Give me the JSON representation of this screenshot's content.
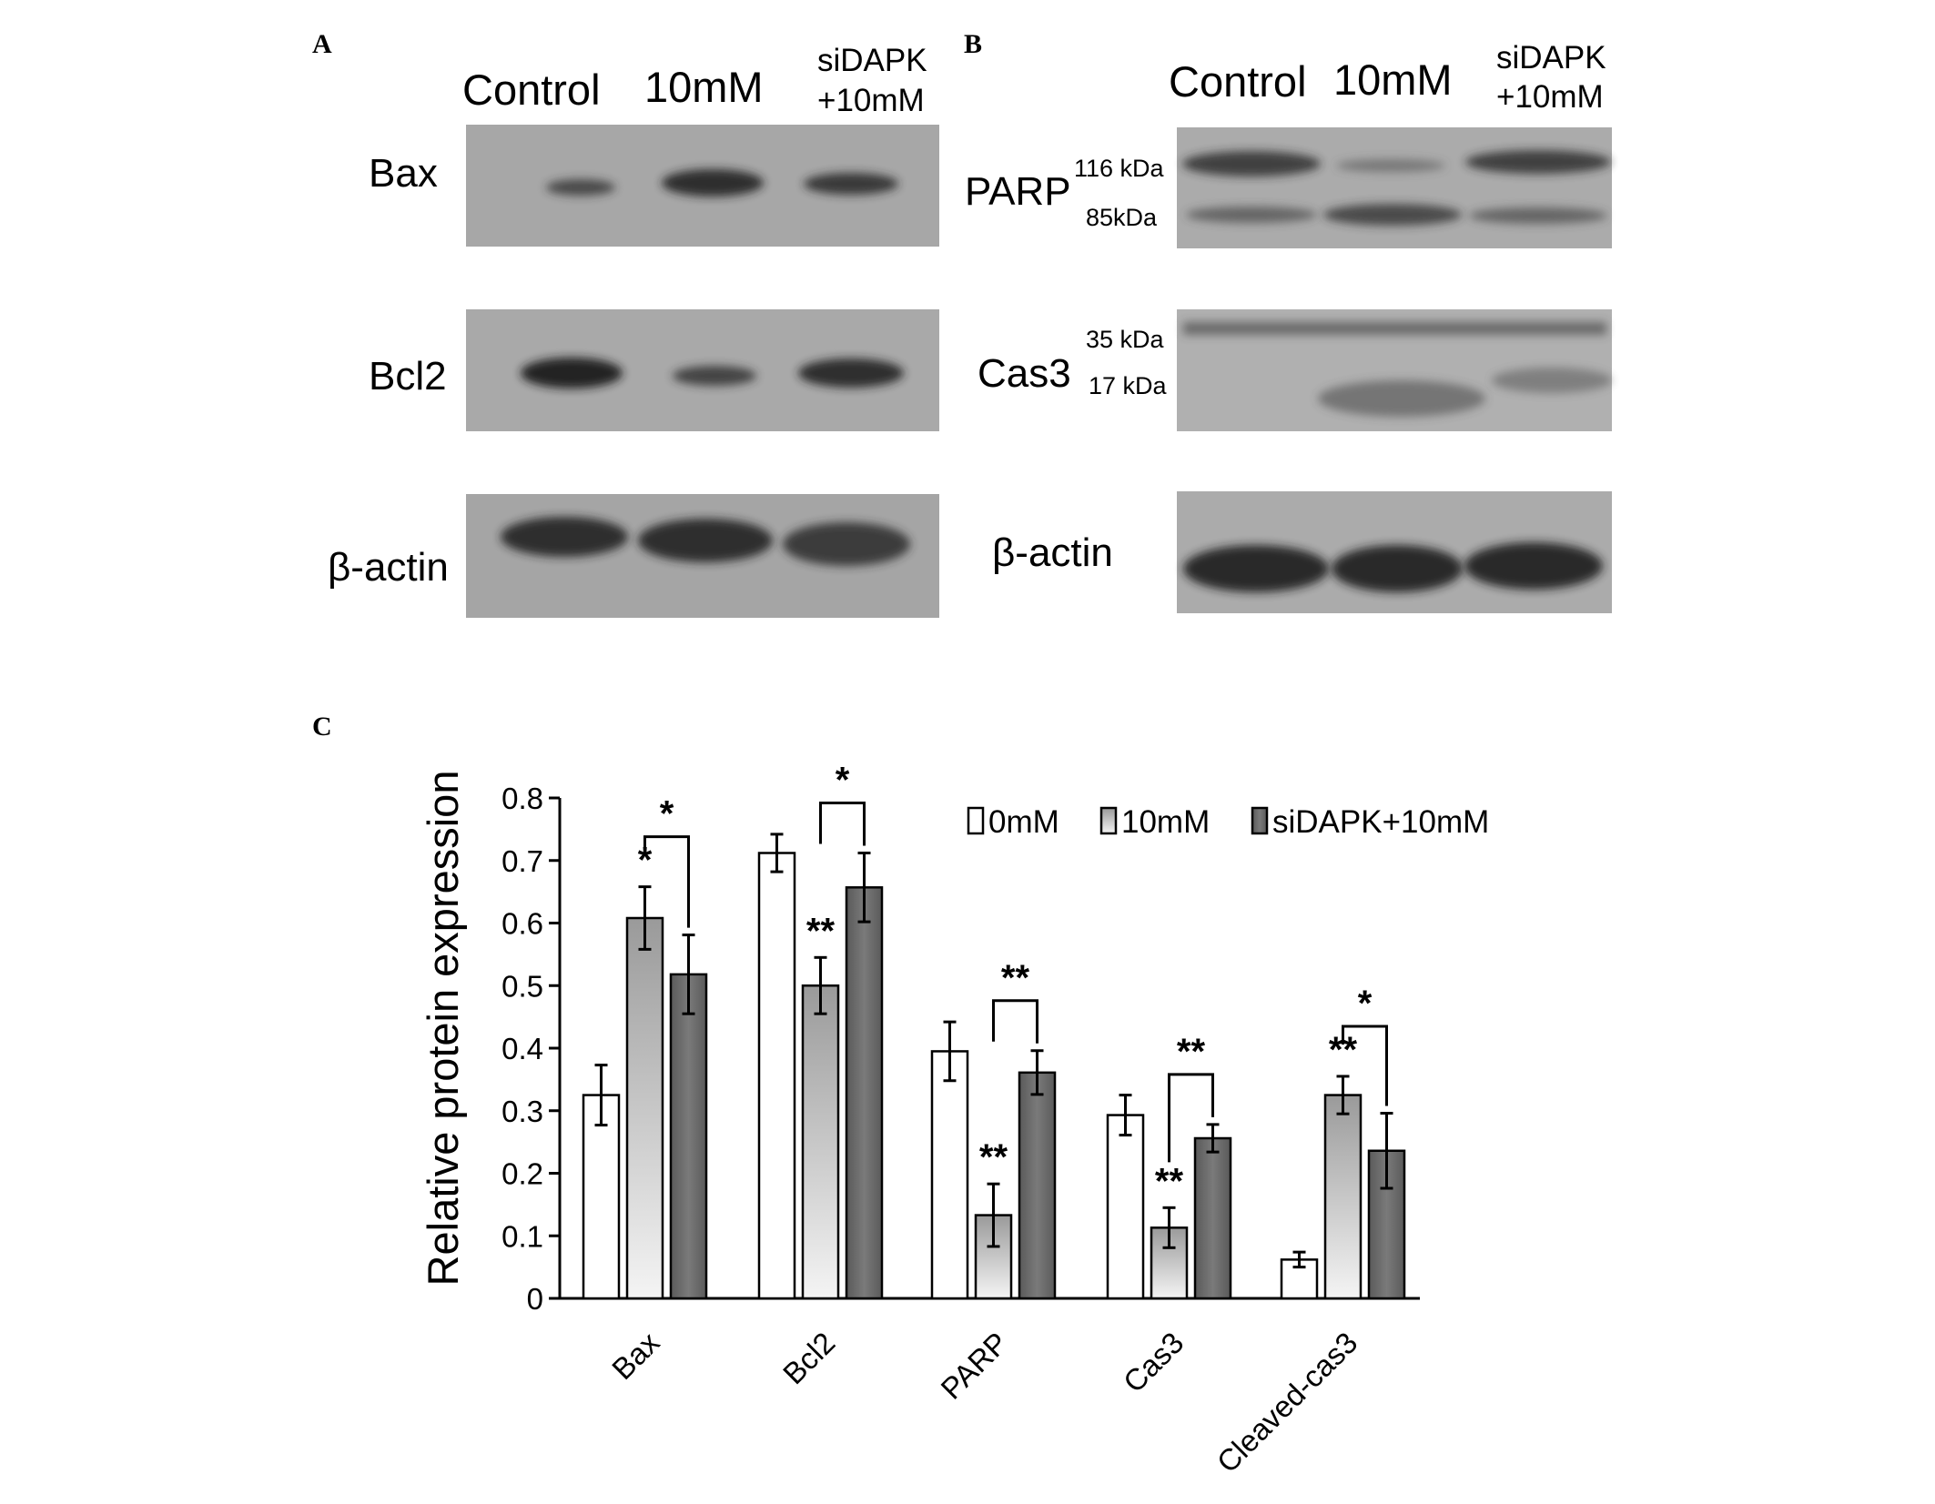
{
  "panels": {
    "a": {
      "letter": "A",
      "lanes": [
        "Control",
        "10mM",
        "siDAPK",
        "+10mM"
      ],
      "blots": [
        {
          "label": "Bax",
          "intensity": [
            0.55,
            0.85,
            0.7
          ]
        },
        {
          "label": "Bcl2",
          "intensity": [
            0.9,
            0.6,
            0.8
          ]
        },
        {
          "label": "β-actin",
          "intensity": [
            0.85,
            0.85,
            0.8
          ]
        }
      ]
    },
    "b": {
      "letter": "B",
      "lanes": [
        "Control",
        "10mM",
        "siDAPK",
        "+10mM"
      ],
      "blots": [
        {
          "label": "PARP",
          "kda": [
            "116 kDa",
            "85kDa"
          ]
        },
        {
          "label": "Cas3",
          "kda": [
            "35 kDa",
            "17 kDa"
          ]
        },
        {
          "label": "β-actin",
          "kda": []
        }
      ]
    },
    "c": {
      "letter": "C"
    }
  },
  "chart_data": {
    "type": "bar",
    "title": "",
    "ylabel": "Relative protein expression",
    "xlabel": "",
    "ylim": [
      0,
      0.8
    ],
    "yticks": [
      "0",
      "0.1",
      "0.2",
      "0.3",
      "0.4",
      "0.5",
      "0.6",
      "0.7",
      "0.8"
    ],
    "categories": [
      "Bax",
      "Bcl2",
      "PARP",
      "Cas3",
      "Cleaved-cas3"
    ],
    "series": [
      {
        "name": "0mM",
        "values": [
          0.325,
          0.712,
          0.395,
          0.293,
          0.062
        ],
        "errors": [
          0.048,
          0.03,
          0.047,
          0.032,
          0.012
        ],
        "color": "#ffffff"
      },
      {
        "name": "10mM",
        "values": [
          0.608,
          0.5,
          0.133,
          0.113,
          0.325
        ],
        "errors": [
          0.05,
          0.045,
          0.05,
          0.032,
          0.03
        ],
        "color": "#c8c8c8"
      },
      {
        "name": "siDAPK+10mM",
        "values": [
          0.518,
          0.657,
          0.361,
          0.256,
          0.236
        ],
        "errors": [
          0.063,
          0.055,
          0.035,
          0.022,
          0.06
        ],
        "color": "#6a6a6a"
      }
    ],
    "significance_above_bar": [
      {
        "category": 0,
        "series": 1,
        "label": "*"
      },
      {
        "category": 1,
        "series": 1,
        "label": "**"
      },
      {
        "category": 2,
        "series": 1,
        "label": "**"
      },
      {
        "category": 3,
        "series": 1,
        "label": "**"
      },
      {
        "category": 4,
        "series": 1,
        "label": "**"
      }
    ],
    "significance_brackets": [
      {
        "category": 0,
        "label": "*"
      },
      {
        "category": 1,
        "label": "*"
      },
      {
        "category": 2,
        "label": "**"
      },
      {
        "category": 3,
        "label": "**"
      },
      {
        "category": 4,
        "label": "*"
      }
    ],
    "legend": "top-right",
    "grid": false
  }
}
